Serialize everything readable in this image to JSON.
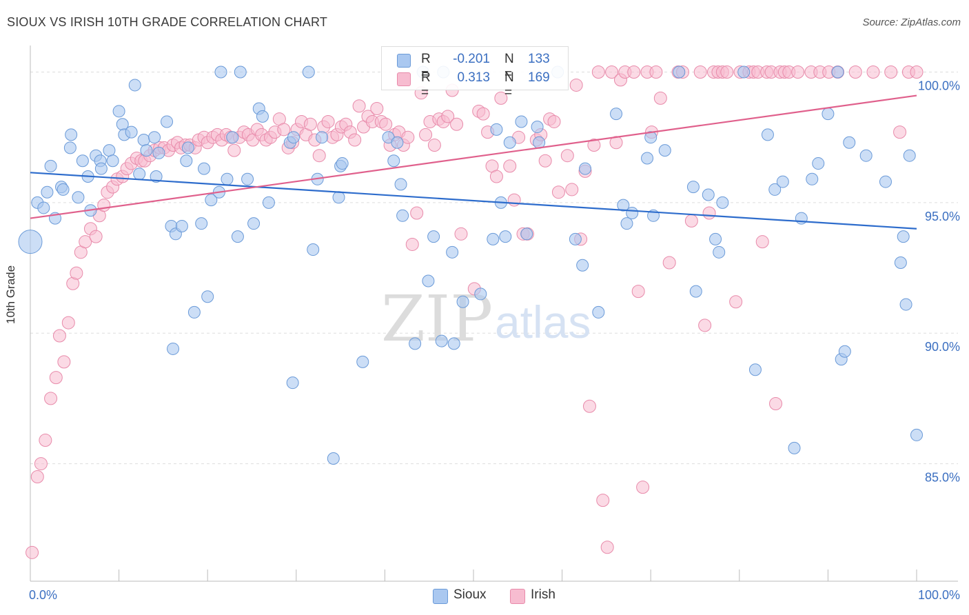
{
  "title": "SIOUX VS IRISH 10TH GRADE CORRELATION CHART",
  "source": "Source: ZipAtlas.com",
  "watermark": {
    "zip": "ZIP",
    "atlas": "atlas"
  },
  "legend": {
    "rows": [
      {
        "r_label": "R =",
        "r_value": "-0.201",
        "n_label": "N =",
        "n_value": "133"
      },
      {
        "r_label": "R =",
        "r_value": "0.313",
        "n_label": "N =",
        "n_value": "169"
      }
    ]
  },
  "colors": {
    "sioux_fill": "#aac8f0",
    "sioux_stroke": "#6a9ad8",
    "sioux_line": "#2d6ccc",
    "irish_fill": "#f7bcd0",
    "irish_stroke": "#e88aaa",
    "irish_line": "#e0608c",
    "tick_label": "#3b6fc1",
    "grid": "#dddddd"
  },
  "chart_data": {
    "type": "scatter",
    "title": "SIOUX VS IRISH 10TH GRADE CORRELATION CHART",
    "xlabel": "",
    "ylabel": "10th Grade",
    "xlim": [
      0,
      100
    ],
    "ylim": [
      80.5,
      100.7
    ],
    "x_tick_labels": [
      "0.0%",
      "100.0%"
    ],
    "y_ticks": [
      85,
      90,
      95,
      100
    ],
    "y_tick_labels": [
      "85.0%",
      "90.0%",
      "95.0%",
      "100.0%"
    ],
    "grid": true,
    "legend_position": "bottom-center",
    "series": [
      {
        "name": "Sioux",
        "r": -0.201,
        "n": 133,
        "trend": {
          "x": [
            0,
            100
          ],
          "y": [
            96.15,
            94.0
          ]
        },
        "points": [
          [
            0,
            93.5
          ],
          [
            0.8,
            95
          ],
          [
            1.5,
            94.8
          ],
          [
            1.9,
            95.4
          ],
          [
            2.3,
            96.4
          ],
          [
            2.8,
            94.4
          ],
          [
            3.5,
            95.6
          ],
          [
            3.7,
            95.5
          ],
          [
            4.5,
            97.1
          ],
          [
            4.6,
            97.6
          ],
          [
            5.4,
            95.2
          ],
          [
            5.9,
            96.6
          ],
          [
            6.5,
            96
          ],
          [
            6.8,
            94.7
          ],
          [
            7.4,
            96.8
          ],
          [
            7.9,
            96.6
          ],
          [
            8,
            96.3
          ],
          [
            8.9,
            97
          ],
          [
            9.3,
            96.6
          ],
          [
            10,
            98.5
          ],
          [
            10.4,
            98
          ],
          [
            10.6,
            97.6
          ],
          [
            11.4,
            97.7
          ],
          [
            11.8,
            99.5
          ],
          [
            12.3,
            96.1
          ],
          [
            12.8,
            97.4
          ],
          [
            13.1,
            97
          ],
          [
            14,
            97.5
          ],
          [
            14.2,
            96
          ],
          [
            14.5,
            96.9
          ],
          [
            15.4,
            98.1
          ],
          [
            15.9,
            94.1
          ],
          [
            16.1,
            89.4
          ],
          [
            16.4,
            93.8
          ],
          [
            17.1,
            94.1
          ],
          [
            17.6,
            96.6
          ],
          [
            17.8,
            97.1
          ],
          [
            18.5,
            90.8
          ],
          [
            19.3,
            94.2
          ],
          [
            19.6,
            96.3
          ],
          [
            20,
            91.4
          ],
          [
            20.4,
            95.1
          ],
          [
            21.3,
            95.4
          ],
          [
            21.5,
            100
          ],
          [
            22.2,
            95.9
          ],
          [
            22.8,
            97.5
          ],
          [
            23.4,
            93.7
          ],
          [
            23.7,
            100
          ],
          [
            24.5,
            95.9
          ],
          [
            25.2,
            94.2
          ],
          [
            25.8,
            98.6
          ],
          [
            26.2,
            98.3
          ],
          [
            26.9,
            95
          ],
          [
            29.3,
            97.3
          ],
          [
            29.6,
            88.1
          ],
          [
            29.7,
            97.5
          ],
          [
            31.4,
            100
          ],
          [
            31.9,
            93.2
          ],
          [
            32.4,
            95.9
          ],
          [
            32.9,
            97.5
          ],
          [
            34.2,
            85.2
          ],
          [
            34.8,
            95.2
          ],
          [
            35,
            96.4
          ],
          [
            35.2,
            96.5
          ],
          [
            37.5,
            88.9
          ],
          [
            40.4,
            97.5
          ],
          [
            41,
            96.6
          ],
          [
            41.4,
            97.3
          ],
          [
            41.8,
            95.7
          ],
          [
            42,
            94.5
          ],
          [
            43.4,
            89.6
          ],
          [
            44.3,
            100
          ],
          [
            44.9,
            92
          ],
          [
            45.5,
            93.7
          ],
          [
            46.4,
            89.7
          ],
          [
            46.6,
            100
          ],
          [
            47.6,
            93.1
          ],
          [
            47.8,
            89.6
          ],
          [
            48.8,
            91.2
          ],
          [
            50.8,
            91.5
          ],
          [
            52.2,
            93.6
          ],
          [
            52.6,
            97.8
          ],
          [
            53.1,
            95
          ],
          [
            53.6,
            93.7
          ],
          [
            54.1,
            97.3
          ],
          [
            55.4,
            98.1
          ],
          [
            56,
            93.8
          ],
          [
            57.2,
            97.9
          ],
          [
            57.4,
            97.3
          ],
          [
            59.5,
            100
          ],
          [
            61.5,
            93.6
          ],
          [
            62.3,
            92.6
          ],
          [
            62.6,
            96.3
          ],
          [
            64.1,
            90.8
          ],
          [
            66.1,
            98.4
          ],
          [
            66.9,
            94.9
          ],
          [
            67.3,
            94.2
          ],
          [
            67.9,
            94.6
          ],
          [
            69.6,
            96.7
          ],
          [
            70,
            97.5
          ],
          [
            70.3,
            94.5
          ],
          [
            71.6,
            97
          ],
          [
            73.2,
            100
          ],
          [
            74.8,
            95.6
          ],
          [
            75.1,
            91.6
          ],
          [
            76.5,
            95.3
          ],
          [
            77.3,
            93.6
          ],
          [
            77.7,
            93.1
          ],
          [
            78.1,
            95
          ],
          [
            80.5,
            100
          ],
          [
            81.8,
            88.6
          ],
          [
            83.2,
            97.6
          ],
          [
            84,
            95.5
          ],
          [
            84.9,
            95.8
          ],
          [
            86.2,
            85.6
          ],
          [
            87,
            94.4
          ],
          [
            88.2,
            95.9
          ],
          [
            88.9,
            96.5
          ],
          [
            90,
            98.4
          ],
          [
            91.1,
            100
          ],
          [
            91.5,
            89
          ],
          [
            91.9,
            89.3
          ],
          [
            92.4,
            97.3
          ],
          [
            94.3,
            96.8
          ],
          [
            96.5,
            95.8
          ],
          [
            98.2,
            92.7
          ],
          [
            98.5,
            93.7
          ],
          [
            98.8,
            91.1
          ],
          [
            99.2,
            96.8
          ],
          [
            100,
            86.1
          ]
        ]
      },
      {
        "name": "Irish",
        "r": 0.313,
        "n": 169,
        "trend": {
          "x": [
            0,
            100
          ],
          "y": [
            94.4,
            99.1
          ]
        },
        "points": [
          [
            0.2,
            81.6
          ],
          [
            0.8,
            84.5
          ],
          [
            1.2,
            85
          ],
          [
            1.7,
            85.9
          ],
          [
            2.3,
            87.5
          ],
          [
            2.9,
            88.3
          ],
          [
            3.3,
            89.9
          ],
          [
            3.8,
            88.9
          ],
          [
            4.3,
            90.4
          ],
          [
            4.8,
            91.9
          ],
          [
            5.2,
            92.3
          ],
          [
            5.7,
            93.1
          ],
          [
            6.2,
            93.5
          ],
          [
            6.8,
            94
          ],
          [
            7.4,
            93.7
          ],
          [
            7.8,
            94.5
          ],
          [
            8.3,
            94.9
          ],
          [
            8.7,
            95.4
          ],
          [
            9.3,
            95.6
          ],
          [
            9.8,
            95.9
          ],
          [
            10.4,
            96
          ],
          [
            10.9,
            96.3
          ],
          [
            11.4,
            96.5
          ],
          [
            12,
            96.7
          ],
          [
            12.5,
            96.6
          ],
          [
            12.9,
            96.6
          ],
          [
            13.5,
            96.8
          ],
          [
            14,
            97
          ],
          [
            14.6,
            97.1
          ],
          [
            15.1,
            97.1
          ],
          [
            15.6,
            97
          ],
          [
            16.1,
            97.2
          ],
          [
            16.6,
            97.3
          ],
          [
            17,
            97.1
          ],
          [
            17.5,
            97.2
          ],
          [
            18,
            97.2
          ],
          [
            18.6,
            97.1
          ],
          [
            19,
            97.4
          ],
          [
            19.6,
            97.5
          ],
          [
            20,
            97.3
          ],
          [
            20.6,
            97.5
          ],
          [
            21.1,
            97.6
          ],
          [
            21.6,
            97.4
          ],
          [
            22.1,
            97.6
          ],
          [
            22.6,
            97.5
          ],
          [
            23,
            97
          ],
          [
            23.6,
            97.5
          ],
          [
            24.1,
            97.7
          ],
          [
            24.6,
            97.6
          ],
          [
            25.1,
            97.4
          ],
          [
            25.6,
            97.8
          ],
          [
            26.1,
            97.6
          ],
          [
            26.6,
            97.4
          ],
          [
            27.1,
            97.5
          ],
          [
            27.6,
            97.7
          ],
          [
            28.1,
            98.2
          ],
          [
            28.6,
            97.8
          ],
          [
            29.1,
            97.1
          ],
          [
            29.6,
            97.3
          ],
          [
            30.1,
            97.8
          ],
          [
            30.6,
            98.1
          ],
          [
            31.1,
            97.6
          ],
          [
            31.6,
            98
          ],
          [
            32.1,
            97.4
          ],
          [
            32.6,
            96.8
          ],
          [
            33.1,
            97.9
          ],
          [
            33.6,
            98.1
          ],
          [
            34.1,
            97.5
          ],
          [
            34.6,
            97.6
          ],
          [
            35.1,
            97.9
          ],
          [
            35.6,
            98
          ],
          [
            36.1,
            97.7
          ],
          [
            36.6,
            97.4
          ],
          [
            37.1,
            98.7
          ],
          [
            37.6,
            97.9
          ],
          [
            38.1,
            98.3
          ],
          [
            38.6,
            98.1
          ],
          [
            39.1,
            98.6
          ],
          [
            39.6,
            98.1
          ],
          [
            40.1,
            98
          ],
          [
            40.6,
            97.2
          ],
          [
            41.1,
            97.6
          ],
          [
            41.6,
            97.7
          ],
          [
            42.1,
            97.2
          ],
          [
            42.6,
            97.5
          ],
          [
            43.1,
            93.4
          ],
          [
            43.6,
            94.6
          ],
          [
            44.1,
            99.2
          ],
          [
            44.6,
            97.6
          ],
          [
            45.1,
            98.1
          ],
          [
            45.6,
            97.2
          ],
          [
            46.1,
            98.2
          ],
          [
            46.6,
            98.1
          ],
          [
            47.1,
            98.3
          ],
          [
            47.6,
            99.3
          ],
          [
            48.1,
            98
          ],
          [
            48.6,
            93.8
          ],
          [
            50.1,
            91.7
          ],
          [
            50.6,
            98.5
          ],
          [
            51.1,
            98.4
          ],
          [
            51.6,
            97.7
          ],
          [
            52.1,
            96.4
          ],
          [
            52.6,
            96
          ],
          [
            53.1,
            99
          ],
          [
            54.1,
            96.4
          ],
          [
            54.6,
            95.1
          ],
          [
            55.1,
            97.5
          ],
          [
            55.6,
            93.8
          ],
          [
            56.1,
            93.8
          ],
          [
            57.1,
            97.4
          ],
          [
            57.6,
            97.6
          ],
          [
            58.1,
            96.6
          ],
          [
            58.6,
            98.2
          ],
          [
            59.1,
            98.1
          ],
          [
            59.6,
            95.4
          ],
          [
            60.6,
            96.8
          ],
          [
            61.1,
            95.5
          ],
          [
            61.6,
            99.5
          ],
          [
            62.1,
            93.6
          ],
          [
            62.6,
            96.2
          ],
          [
            63.1,
            87.2
          ],
          [
            63.6,
            97.2
          ],
          [
            64.1,
            100
          ],
          [
            64.6,
            83.6
          ],
          [
            65.1,
            81.8
          ],
          [
            65.6,
            100
          ],
          [
            66.1,
            97.3
          ],
          [
            66.6,
            99.7
          ],
          [
            67.1,
            100
          ],
          [
            68.1,
            100
          ],
          [
            68.6,
            91.6
          ],
          [
            69.1,
            84.1
          ],
          [
            69.6,
            100
          ],
          [
            70.1,
            97.7
          ],
          [
            70.6,
            100
          ],
          [
            71.1,
            99
          ],
          [
            72.1,
            92.7
          ],
          [
            73.1,
            100
          ],
          [
            73.6,
            100
          ],
          [
            74.6,
            94.3
          ],
          [
            75.6,
            100
          ],
          [
            76.1,
            90.3
          ],
          [
            76.6,
            94.6
          ],
          [
            77.1,
            100
          ],
          [
            77.6,
            100
          ],
          [
            78.1,
            100
          ],
          [
            78.6,
            100
          ],
          [
            79.6,
            91.2
          ],
          [
            80.1,
            100
          ],
          [
            81.1,
            100
          ],
          [
            81.6,
            100
          ],
          [
            82.1,
            100
          ],
          [
            82.6,
            93.5
          ],
          [
            83.1,
            100
          ],
          [
            83.6,
            100
          ],
          [
            84.1,
            87.3
          ],
          [
            84.6,
            100
          ],
          [
            85.1,
            100
          ],
          [
            85.6,
            100
          ],
          [
            86.6,
            100
          ],
          [
            88.1,
            100
          ],
          [
            89.1,
            100
          ],
          [
            90.1,
            100
          ],
          [
            91.1,
            100
          ],
          [
            93.1,
            100
          ],
          [
            95.1,
            100
          ],
          [
            97.1,
            100
          ],
          [
            98.1,
            97.7
          ],
          [
            99.1,
            100
          ],
          [
            100,
            100
          ]
        ]
      }
    ]
  },
  "bottom_legend": [
    {
      "name": "Sioux"
    },
    {
      "name": "Irish"
    }
  ]
}
